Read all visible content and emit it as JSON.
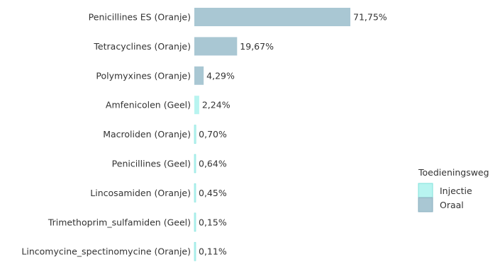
{
  "chart_data": {
    "type": "bar",
    "orientation": "horizontal",
    "categories": [
      "Penicillines ES (Oranje)",
      "Tetracyclines (Oranje)",
      "Polymyxines (Oranje)",
      "Amfenicolen (Geel)",
      "Macroliden (Oranje)",
      "Penicillines (Geel)",
      "Lincosamiden (Oranje)",
      "Trimethoprim_sulfamiden (Geel)",
      "Lincomycine_spectinomycine (Oranje)"
    ],
    "values": [
      71.75,
      19.67,
      4.29,
      2.24,
      0.7,
      0.64,
      0.45,
      0.15,
      0.11
    ],
    "value_labels": [
      "71,75%",
      "19,67%",
      "4,29%",
      "2,24%",
      "0,70%",
      "0,64%",
      "0,45%",
      "0,15%",
      "0,11%"
    ],
    "series_assignment": [
      "Oraal",
      "Oraal",
      "Oraal",
      "Injectie",
      "Injectie",
      "Injectie",
      "Injectie",
      "Injectie",
      "Injectie"
    ],
    "xlim": [
      0,
      71.75
    ],
    "grid": false,
    "legend": {
      "title": "Toedieningsweg",
      "placement": "right",
      "entries": [
        {
          "name": "Injectie",
          "color": "#b8f4f0"
        },
        {
          "name": "Oraal",
          "color": "#a9c7d3"
        }
      ]
    }
  }
}
